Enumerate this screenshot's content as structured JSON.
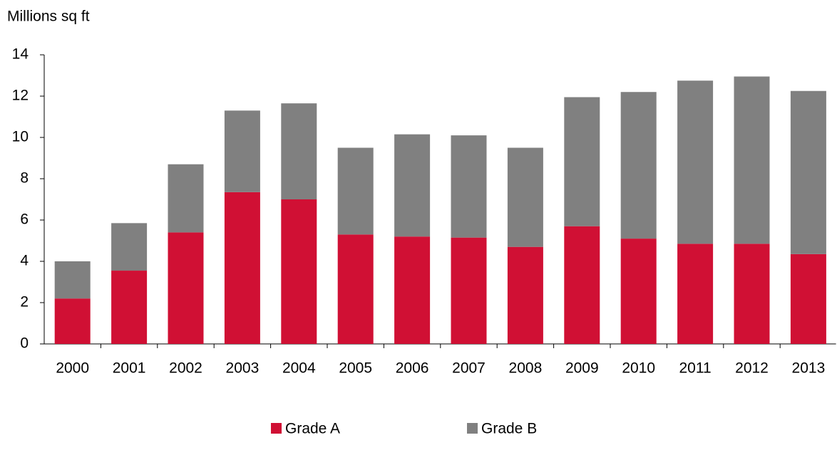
{
  "chart_data": {
    "type": "stacked_bar",
    "y_axis_label": "Millions sq ft",
    "categories": [
      "2000",
      "2001",
      "2002",
      "2003",
      "2004",
      "2005",
      "2006",
      "2007",
      "2008",
      "2009",
      "2010",
      "2011",
      "2012",
      "2013"
    ],
    "series": [
      {
        "name": "Grade A",
        "color": "#d01034",
        "values": [
          2.2,
          3.55,
          5.4,
          7.35,
          7.0,
          5.3,
          5.2,
          5.15,
          4.7,
          5.7,
          5.1,
          4.85,
          4.85,
          4.35
        ]
      },
      {
        "name": "Grade B",
        "color": "#808080",
        "values": [
          1.8,
          2.3,
          3.3,
          3.95,
          4.65,
          4.2,
          4.95,
          4.95,
          4.8,
          6.25,
          7.1,
          7.9,
          8.1,
          7.9
        ]
      }
    ],
    "ylim": [
      0,
      14
    ],
    "yticks": [
      0,
      2,
      4,
      6,
      8,
      10,
      12,
      14
    ],
    "grid": false,
    "legend": "bottom"
  }
}
